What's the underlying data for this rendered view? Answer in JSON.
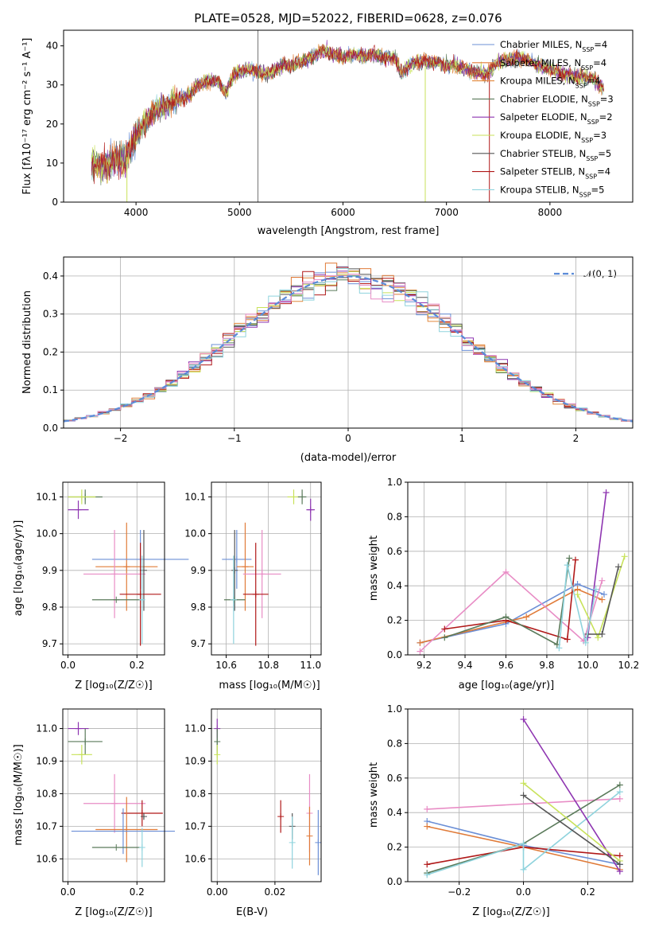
{
  "colors": {
    "Chabrier MILES": "#6b8fd6",
    "Salpeter MILES": "#e07b39",
    "Kroupa MILES": "#e1883c",
    "Chabrier ELODIE": "#5a7a5a",
    "Salpeter ELODIE": "#8e35b1",
    "Kroupa ELODIE": "#c8e25a",
    "Chabrier STELIB": "#555555",
    "Salpeter STELIB": "#b01818",
    "Kroupa STELIB": "#8fd3dd",
    "pink": "#e88cc5",
    "normal": "#5b8bd8"
  },
  "chart_data": [
    {
      "id": "spectrum",
      "type": "line",
      "title": "PLATE=0528, MJD=52022, FIBERID=0628, z=0.076",
      "xlabel": "wavelength [Angstrom, rest frame]",
      "ylabel": "Flux [fλ10⁻¹⁷ erg cm⁻² s⁻¹ A⁻¹]",
      "xlim": [
        3300,
        8800
      ],
      "ylim": [
        0,
        44
      ],
      "xticks": [
        4000,
        5000,
        6000,
        7000,
        8000
      ],
      "yticks": [
        0,
        10,
        20,
        30,
        40
      ],
      "legend_position": "top-right",
      "continuum": [
        [
          3570,
          10
        ],
        [
          3700,
          9
        ],
        [
          3800,
          11
        ],
        [
          3900,
          11
        ],
        [
          4000,
          17
        ],
        [
          4100,
          21
        ],
        [
          4200,
          24
        ],
        [
          4300,
          25
        ],
        [
          4400,
          26
        ],
        [
          4500,
          27
        ],
        [
          4600,
          30
        ],
        [
          4700,
          31
        ],
        [
          4800,
          31
        ],
        [
          4860,
          28
        ],
        [
          4950,
          33
        ],
        [
          5100,
          34
        ],
        [
          5200,
          33
        ],
        [
          5300,
          33
        ],
        [
          5400,
          35
        ],
        [
          5500,
          35
        ],
        [
          5600,
          36
        ],
        [
          5700,
          37
        ],
        [
          5800,
          39
        ],
        [
          5900,
          38
        ],
        [
          6000,
          37
        ],
        [
          6100,
          38
        ],
        [
          6200,
          37
        ],
        [
          6300,
          38
        ],
        [
          6400,
          37
        ],
        [
          6500,
          37
        ],
        [
          6560,
          33
        ],
        [
          6700,
          36
        ],
        [
          6800,
          36
        ],
        [
          6900,
          36
        ],
        [
          7000,
          35
        ],
        [
          7100,
          35
        ],
        [
          7200,
          34
        ],
        [
          7300,
          33
        ],
        [
          7400,
          33
        ],
        [
          7500,
          36
        ],
        [
          7700,
          37
        ],
        [
          7900,
          35
        ],
        [
          8100,
          33
        ],
        [
          8300,
          32
        ],
        [
          8400,
          32
        ],
        [
          8520,
          29
        ]
      ],
      "series": [
        {
          "name": "Chabrier MILES, N_SSP=4",
          "color_key": "Chabrier MILES"
        },
        {
          "name": "Salpeter MILES, N_SSP=4",
          "color_key": "Salpeter MILES"
        },
        {
          "name": "Kroupa MILES, N_SSP=4",
          "color_key": "Kroupa MILES"
        },
        {
          "name": "Chabrier ELODIE, N_SSP=3",
          "color_key": "Chabrier ELODIE"
        },
        {
          "name": "Salpeter ELODIE, N_SSP=2",
          "color_key": "Salpeter ELODIE"
        },
        {
          "name": "Kroupa ELODIE, N_SSP=3",
          "color_key": "Kroupa ELODIE"
        },
        {
          "name": "Chabrier STELIB, N_SSP=5",
          "color_key": "Chabrier STELIB"
        },
        {
          "name": "Salpeter STELIB, N_SSP=4",
          "color_key": "Salpeter STELIB"
        },
        {
          "name": "Kroupa STELIB, N_SSP=5",
          "color_key": "Kroupa STELIB"
        }
      ]
    },
    {
      "id": "residuals",
      "type": "histogram",
      "xlabel": "(data-model)/error",
      "ylabel": "Normed distribution",
      "xlim": [
        -2.5,
        2.5
      ],
      "ylim": [
        0,
        0.45
      ],
      "xticks": [
        -2,
        -1,
        0,
        1,
        2
      ],
      "yticks": [
        0.0,
        0.1,
        0.2,
        0.3,
        0.4
      ],
      "grid": true,
      "legend_position": "top-right",
      "legend": "𝒩(0, 1)",
      "bin_width": 0.1,
      "series_colors": [
        "Chabrier MILES",
        "Salpeter MILES",
        "Kroupa MILES",
        "Chabrier ELODIE",
        "Salpeter ELODIE",
        "Kroupa ELODIE",
        "Chabrier STELIB",
        "Salpeter STELIB",
        "Kroupa STELIB",
        "pink"
      ]
    },
    {
      "id": "age_vs_Z",
      "type": "errorbar",
      "xlabel": "Z [log₁₀(Z/Z☉)]",
      "ylabel": "age  [log₁₀(age/yr)]",
      "xlim": [
        -0.015,
        0.28
      ],
      "ylim": [
        9.67,
        10.14
      ],
      "xticks": [
        0.0,
        0.2
      ],
      "yticks": [
        9.7,
        9.8,
        9.9,
        10.0,
        10.1
      ],
      "grid": true,
      "points": [
        {
          "c": "Chabrier ELODIE",
          "x": 0.05,
          "y": 10.1,
          "xe": 0.05,
          "ye": 0.02
        },
        {
          "c": "Kroupa ELODIE",
          "x": 0.04,
          "y": 10.1,
          "xe": 0.04,
          "ye": 0.02
        },
        {
          "c": "Salpeter ELODIE",
          "x": 0.03,
          "y": 10.065,
          "xe": 0.03,
          "ye": 0.025
        },
        {
          "c": "Salpeter MILES",
          "x": 0.17,
          "y": 9.91,
          "xe": 0.09,
          "ye": 0.12
        },
        {
          "c": "Chabrier MILES",
          "x": 0.21,
          "y": 9.93,
          "xe": 0.14,
          "ye": 0.08
        },
        {
          "c": "pink",
          "x": 0.135,
          "y": 9.89,
          "xe": 0.09,
          "ye": 0.12
        },
        {
          "c": "Chabrier STELIB",
          "x": 0.22,
          "y": 9.9,
          "xe": 0.0,
          "ye": 0.11
        },
        {
          "c": "Salpeter STELIB",
          "x": 0.21,
          "y": 9.835,
          "xe": 0.06,
          "ye": 0.14
        },
        {
          "c": "Chabrier ELODIE",
          "x": 0.14,
          "y": 9.82,
          "xe": 0.07,
          "ye": 0.0
        },
        {
          "c": "Kroupa STELIB",
          "x": 0.215,
          "y": 9.82,
          "xe": 0.005,
          "ye": 0.12
        }
      ]
    },
    {
      "id": "age_vs_mass",
      "type": "errorbar",
      "xlabel": "mass [log₁₀(M/M☉)]",
      "ylabel": "",
      "xlim": [
        10.53,
        11.05
      ],
      "ylim": [
        9.67,
        10.14
      ],
      "xticks": [
        10.6,
        10.8,
        11.0
      ],
      "yticks": [
        9.7,
        9.8,
        9.9,
        10.0,
        10.1
      ],
      "grid": true,
      "points": [
        {
          "c": "Kroupa ELODIE",
          "x": 10.92,
          "y": 10.1,
          "xe": 0.03,
          "ye": 0.02
        },
        {
          "c": "Chabrier ELODIE",
          "x": 10.96,
          "y": 10.1,
          "xe": 0.02,
          "ye": 0.02
        },
        {
          "c": "Salpeter ELODIE",
          "x": 11.0,
          "y": 10.065,
          "xe": 0.02,
          "ye": 0.03
        },
        {
          "c": "Chabrier MILES",
          "x": 10.65,
          "y": 9.93,
          "xe": 0.07,
          "ye": 0.08
        },
        {
          "c": "Salpeter MILES",
          "x": 10.69,
          "y": 9.91,
          "xe": 0.04,
          "ye": 0.12
        },
        {
          "c": "Chabrier STELIB",
          "x": 10.64,
          "y": 9.9,
          "xe": 0.0,
          "ye": 0.11
        },
        {
          "c": "pink",
          "x": 10.77,
          "y": 9.89,
          "xe": 0.09,
          "ye": 0.12
        },
        {
          "c": "Salpeter STELIB",
          "x": 10.74,
          "y": 9.835,
          "xe": 0.06,
          "ye": 0.14
        },
        {
          "c": "Chabrier ELODIE",
          "x": 10.64,
          "y": 9.82,
          "xe": 0.05,
          "ye": 0.0
        },
        {
          "c": "Kroupa STELIB",
          "x": 10.635,
          "y": 9.82,
          "xe": 0.003,
          "ye": 0.12
        }
      ]
    },
    {
      "id": "weight_vs_age",
      "type": "line",
      "xlabel": "age  [log₁₀(age/yr)]",
      "ylabel": "mass weight",
      "xlim": [
        9.12,
        10.22
      ],
      "ylim": [
        0,
        1
      ],
      "xticks": [
        9.2,
        9.4,
        9.6,
        9.8,
        10.0,
        10.2
      ],
      "yticks": [
        0.0,
        0.2,
        0.4,
        0.6,
        0.8,
        1.0
      ],
      "grid": true,
      "series": [
        {
          "c": "Chabrier MILES",
          "x": [
            9.18,
            9.6,
            9.95,
            10.08
          ],
          "y": [
            0.07,
            0.18,
            0.41,
            0.35
          ]
        },
        {
          "c": "Salpeter MILES",
          "x": [
            9.18,
            9.7,
            9.95,
            10.07
          ],
          "y": [
            0.07,
            0.22,
            0.38,
            0.32
          ]
        },
        {
          "c": "pink",
          "x": [
            9.18,
            9.6,
            9.98,
            10.07
          ],
          "y": [
            0.02,
            0.48,
            0.08,
            0.43
          ]
        },
        {
          "c": "Salpeter STELIB",
          "x": [
            9.3,
            9.6,
            9.9,
            9.94
          ],
          "y": [
            0.15,
            0.2,
            0.09,
            0.55
          ]
        },
        {
          "c": "Chabrier ELODIE",
          "x": [
            9.3,
            9.6,
            9.85,
            9.91
          ],
          "y": [
            0.1,
            0.22,
            0.06,
            0.56
          ]
        },
        {
          "c": "Salpeter ELODIE",
          "x": [
            10.0,
            10.09
          ],
          "y": [
            0.1,
            0.94
          ]
        },
        {
          "c": "Kroupa ELODIE",
          "x": [
            9.95,
            10.05,
            10.18
          ],
          "y": [
            0.35,
            0.1,
            0.57
          ]
        },
        {
          "c": "Chabrier STELIB",
          "x": [
            10.0,
            10.07,
            10.15
          ],
          "y": [
            0.12,
            0.12,
            0.51
          ]
        },
        {
          "c": "Kroupa STELIB",
          "x": [
            9.86,
            9.9,
            9.99,
            10.04
          ],
          "y": [
            0.04,
            0.52,
            0.07,
            0.38
          ]
        }
      ]
    },
    {
      "id": "mass_vs_Z",
      "type": "errorbar",
      "xlabel": "Z [log₁₀(Z/Z☉)]",
      "ylabel": "mass [log₁₀(M/M☉)]",
      "xlim": [
        -0.015,
        0.28
      ],
      "ylim": [
        10.53,
        11.06
      ],
      "xticks": [
        0.0,
        0.2
      ],
      "yticks": [
        10.6,
        10.7,
        10.8,
        10.9,
        11.0
      ],
      "grid": true,
      "points": [
        {
          "c": "Salpeter ELODIE",
          "x": 0.03,
          "y": 11.0,
          "xe": 0.03,
          "ye": 0.02
        },
        {
          "c": "Chabrier ELODIE",
          "x": 0.05,
          "y": 10.96,
          "xe": 0.05,
          "ye": 0.04
        },
        {
          "c": "Kroupa ELODIE",
          "x": 0.04,
          "y": 10.92,
          "xe": 0.03,
          "ye": 0.03
        },
        {
          "c": "pink",
          "x": 0.135,
          "y": 10.77,
          "xe": 0.09,
          "ye": 0.09
        },
        {
          "c": "Salpeter STELIB",
          "x": 0.215,
          "y": 10.74,
          "xe": 0.06,
          "ye": 0.04
        },
        {
          "c": "Chabrier STELIB",
          "x": 0.22,
          "y": 10.73,
          "xe": 0.0,
          "ye": 0.01
        },
        {
          "c": "Salpeter MILES",
          "x": 0.17,
          "y": 10.69,
          "xe": 0.09,
          "ye": 0.1
        },
        {
          "c": "Chabrier MILES",
          "x": 0.16,
          "y": 10.685,
          "xe": 0.15,
          "ye": 0.07
        },
        {
          "c": "Chabrier ELODIE",
          "x": 0.14,
          "y": 10.635,
          "xe": 0.07,
          "ye": 0.0
        },
        {
          "c": "Kroupa STELIB",
          "x": 0.215,
          "y": 10.635,
          "xe": 0.0,
          "ye": 0.06
        }
      ]
    },
    {
      "id": "mass_vs_EBV",
      "type": "errorbar",
      "xlabel": "E(B-V)",
      "ylabel": "",
      "xlim": [
        -0.002,
        0.036
      ],
      "ylim": [
        10.53,
        11.06
      ],
      "xticks": [
        0.0,
        0.02
      ],
      "yticks": [
        10.6,
        10.7,
        10.8,
        10.9,
        11.0
      ],
      "grid": true,
      "points": [
        {
          "c": "Salpeter ELODIE",
          "x": 0.0,
          "y": 11.0,
          "xe": 0,
          "ye": 0.03
        },
        {
          "c": "Chabrier ELODIE",
          "x": 0.0,
          "y": 10.96,
          "xe": 0,
          "ye": 0.04
        },
        {
          "c": "Kroupa ELODIE",
          "x": 0.0,
          "y": 10.92,
          "xe": 0,
          "ye": 0.03
        },
        {
          "c": "Salpeter STELIB",
          "x": 0.022,
          "y": 10.73,
          "xe": 0,
          "ye": 0.05
        },
        {
          "c": "Chabrier STELIB",
          "x": 0.026,
          "y": 10.7,
          "xe": 0,
          "ye": 0.04
        },
        {
          "c": "Kroupa STELIB",
          "x": 0.026,
          "y": 10.65,
          "xe": 0,
          "ye": 0.08
        },
        {
          "c": "pink",
          "x": 0.032,
          "y": 10.74,
          "xe": 0,
          "ye": 0.12
        },
        {
          "c": "Salpeter MILES",
          "x": 0.032,
          "y": 10.67,
          "xe": 0,
          "ye": 0.09
        },
        {
          "c": "Chabrier MILES",
          "x": 0.035,
          "y": 10.65,
          "xe": 0,
          "ye": 0.1
        }
      ]
    },
    {
      "id": "weight_vs_Z",
      "type": "line",
      "xlabel": "Z [log₁₀(Z/Z☉)]",
      "ylabel": "mass weight",
      "xlim": [
        -0.36,
        0.34
      ],
      "ylim": [
        0,
        1
      ],
      "xticks": [
        -0.2,
        0.0,
        0.2
      ],
      "yticks": [
        0.0,
        0.2,
        0.4,
        0.6,
        0.8,
        1.0
      ],
      "grid": true,
      "series": [
        {
          "c": "Chabrier MILES",
          "x": [
            -0.3,
            0.0,
            0.3
          ],
          "y": [
            0.35,
            0.21,
            0.1
          ]
        },
        {
          "c": "Salpeter MILES",
          "x": [
            -0.3,
            0.0,
            0.3
          ],
          "y": [
            0.32,
            0.2,
            0.07
          ]
        },
        {
          "c": "pink",
          "x": [
            -0.3,
            0.3
          ],
          "y": [
            0.42,
            0.48
          ]
        },
        {
          "c": "Salpeter STELIB",
          "x": [
            -0.3,
            0.0,
            0.3
          ],
          "y": [
            0.1,
            0.2,
            0.15
          ]
        },
        {
          "c": "Chabrier ELODIE",
          "x": [
            -0.3,
            0.0,
            0.3
          ],
          "y": [
            0.05,
            0.22,
            0.56
          ]
        },
        {
          "c": "Kroupa STELIB",
          "x": [
            -0.3,
            0.0,
            0.0,
            0.3
          ],
          "y": [
            0.04,
            0.22,
            0.07,
            0.52
          ]
        },
        {
          "c": "Salpeter ELODIE",
          "x": [
            0.0,
            0.3
          ],
          "y": [
            0.94,
            0.06
          ]
        },
        {
          "c": "Kroupa ELODIE",
          "x": [
            0.0,
            0.3
          ],
          "y": [
            0.57,
            0.12
          ]
        },
        {
          "c": "Chabrier STELIB",
          "x": [
            0.0,
            0.3
          ],
          "y": [
            0.5,
            0.1
          ]
        }
      ]
    }
  ]
}
